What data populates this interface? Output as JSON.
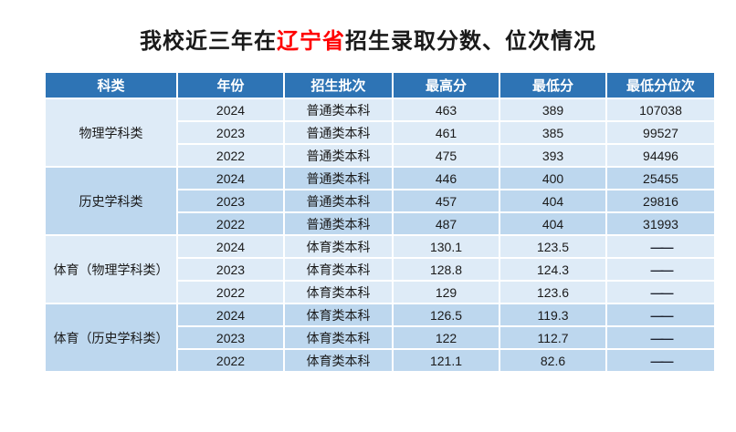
{
  "title": {
    "prefix": "我校近三年在",
    "highlight": "辽宁省",
    "suffix": "招生录取分数、位次情况"
  },
  "colors": {
    "header_bg": "#2E74B5",
    "row_light": "#DEEBF7",
    "row_dark": "#BDD7EE",
    "highlight_red": "#FF0000",
    "body_text": "#1A1A1A",
    "header_text": "#FFFFFF"
  },
  "table": {
    "headers": [
      "科类",
      "年份",
      "招生批次",
      "最高分",
      "最低分",
      "最低分位次"
    ],
    "groups": [
      {
        "category": "物理学科类",
        "shade": "light",
        "rows": [
          {
            "year": "2024",
            "batch": "普通类本科",
            "max": "463",
            "min": "389",
            "rank": "107038"
          },
          {
            "year": "2023",
            "batch": "普通类本科",
            "max": "461",
            "min": "385",
            "rank": "99527"
          },
          {
            "year": "2022",
            "batch": "普通类本科",
            "max": "475",
            "min": "393",
            "rank": "94496"
          }
        ]
      },
      {
        "category": "历史学科类",
        "shade": "dark",
        "rows": [
          {
            "year": "2024",
            "batch": "普通类本科",
            "max": "446",
            "min": "400",
            "rank": "25455"
          },
          {
            "year": "2023",
            "batch": "普通类本科",
            "max": "457",
            "min": "404",
            "rank": "29816"
          },
          {
            "year": "2022",
            "batch": "普通类本科",
            "max": "487",
            "min": "404",
            "rank": "31993"
          }
        ]
      },
      {
        "category": "体育（物理学科类）",
        "shade": "light",
        "rows": [
          {
            "year": "2024",
            "batch": "体育类本科",
            "max": "130.1",
            "min": "123.5",
            "rank": "——"
          },
          {
            "year": "2023",
            "batch": "体育类本科",
            "max": "128.8",
            "min": "124.3",
            "rank": "——"
          },
          {
            "year": "2022",
            "batch": "体育类本科",
            "max": "129",
            "min": "123.6",
            "rank": "——"
          }
        ]
      },
      {
        "category": "体育（历史学科类）",
        "shade": "dark",
        "rows": [
          {
            "year": "2024",
            "batch": "体育类本科",
            "max": "126.5",
            "min": "119.3",
            "rank": "——"
          },
          {
            "year": "2023",
            "batch": "体育类本科",
            "max": "122",
            "min": "112.7",
            "rank": "——"
          },
          {
            "year": "2022",
            "batch": "体育类本科",
            "max": "121.1",
            "min": "82.6",
            "rank": "——"
          }
        ]
      }
    ]
  }
}
